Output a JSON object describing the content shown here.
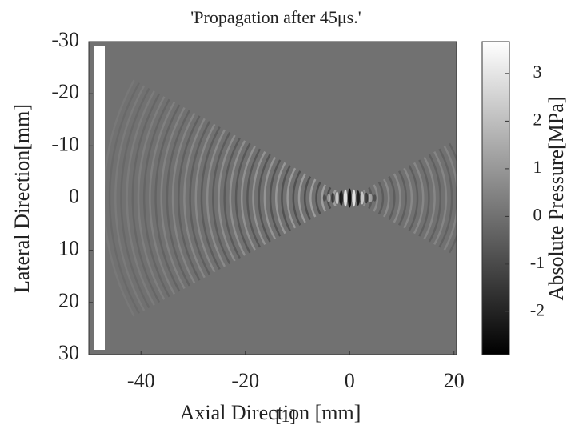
{
  "chart_data": {
    "type": "heatmap",
    "title": "'Propagation after 45μs.'",
    "xlabel": "Axial Direction [mm]",
    "ylabel": "Lateral Direction[mm]",
    "annotation": "[1]",
    "xlim": [
      -50,
      20.5
    ],
    "xticks": [
      -40,
      -20,
      0,
      20
    ],
    "ylim": [
      -30,
      30
    ],
    "yticks": [
      -30,
      -20,
      -10,
      0,
      10,
      20,
      30
    ],
    "y_reversed": true,
    "colormap": "gray",
    "colorbar_label": "Absolute Pressure[MPa]",
    "clim": [
      -2.9,
      3.67
    ],
    "cticks": [
      -2,
      -1,
      0,
      1,
      2,
      3
    ]
  }
}
